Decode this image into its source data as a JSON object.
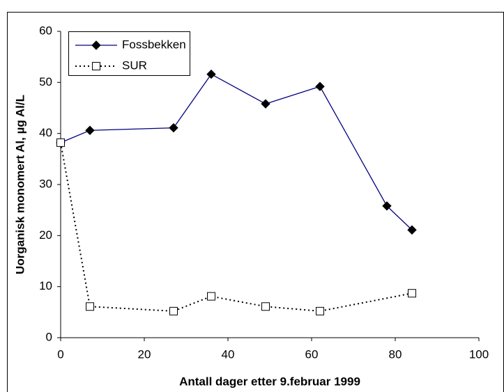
{
  "chart_data": {
    "type": "line",
    "xlabel": "Antall dager etter 9.februar 1999",
    "ylabel": "Uorganisk monomert Al, µg Al/L",
    "xlim": [
      0,
      100
    ],
    "xticks": [
      0,
      20,
      40,
      60,
      80,
      100
    ],
    "ylim": [
      0,
      60
    ],
    "yticks": [
      0,
      10,
      20,
      30,
      40,
      50,
      60
    ],
    "grid": false,
    "legend": "upper left",
    "series": [
      {
        "name": "Fossbekken",
        "color": "#000080",
        "marker": "diamond",
        "line": "solid",
        "x": [
          0,
          7,
          27,
          36,
          49,
          62,
          78,
          84
        ],
        "values": [
          38.2,
          40.6,
          41.1,
          51.6,
          45.8,
          49.2,
          25.8,
          21.1
        ]
      },
      {
        "name": "SUR",
        "color": "#000000",
        "marker": "square",
        "line": "dotted",
        "x": [
          0,
          7,
          27,
          36,
          49,
          62,
          84
        ],
        "values": [
          38.2,
          6.1,
          5.2,
          8.1,
          6.1,
          5.2,
          8.7
        ]
      }
    ]
  }
}
